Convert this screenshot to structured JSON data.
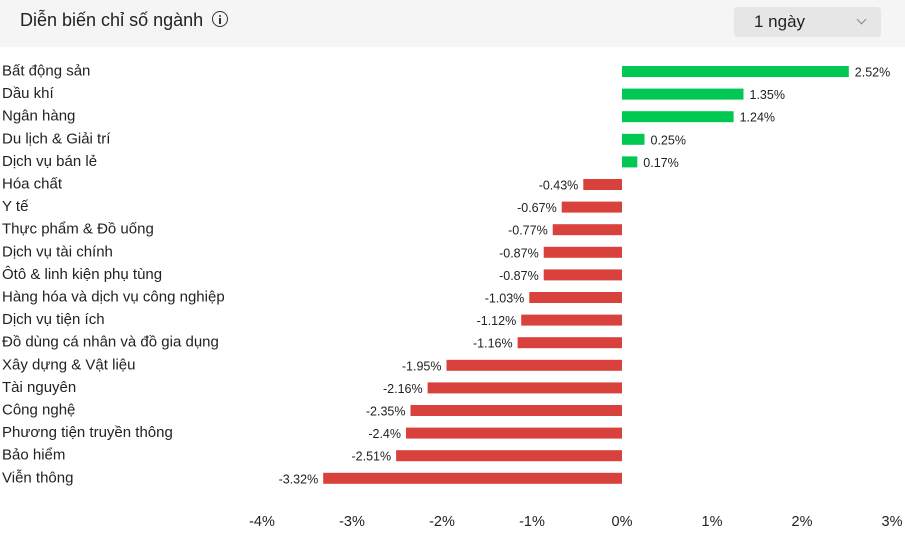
{
  "header": {
    "title": "Diễn biến chỉ số ngành",
    "period": "1 ngày"
  },
  "colors": {
    "positive": "#00c853",
    "negative": "#d9423c"
  },
  "chart_data": {
    "type": "bar",
    "orientation": "horizontal",
    "title": "Diễn biến chỉ số ngành",
    "categories": [
      "Bất động sản",
      "Dầu khí",
      "Ngân hàng",
      "Du lịch & Giải trí",
      "Dịch vụ bán lẻ",
      "Hóa chất",
      "Y tế",
      "Thực phẩm & Đồ uống",
      "Dịch vụ tài chính",
      "Ôtô & linh kiện phụ tùng",
      "Hàng hóa và dịch vụ công nghiệp",
      "Dịch vụ tiện ích",
      "Đồ dùng cá nhân và đồ gia dụng",
      "Xây dựng & Vật liệu",
      "Tài nguyên",
      "Công nghệ",
      "Phương tiện truyền thông",
      "Bảo hiểm",
      "Viễn thông"
    ],
    "values": [
      2.52,
      1.35,
      1.24,
      0.25,
      0.17,
      -0.43,
      -0.67,
      -0.77,
      -0.87,
      -0.87,
      -1.03,
      -1.12,
      -1.16,
      -1.95,
      -2.16,
      -2.35,
      -2.4,
      -2.51,
      -3.32
    ],
    "value_labels": [
      "2.52%",
      "1.35%",
      "1.24%",
      "0.25%",
      "0.17%",
      "-0.43%",
      "-0.67%",
      "-0.77%",
      "-0.87%",
      "-0.87%",
      "-1.03%",
      "-1.12%",
      "-1.16%",
      "-1.95%",
      "-2.16%",
      "-2.35%",
      "-2.4%",
      "-2.51%",
      "-3.32%"
    ],
    "xlim": [
      -4,
      3
    ],
    "xticks": [
      -4,
      -3,
      -2,
      -1,
      0,
      1,
      2,
      3
    ],
    "xtick_labels": [
      "-4%",
      "-3%",
      "-2%",
      "-1%",
      "0%",
      "1%",
      "2%",
      "3%"
    ],
    "grid": false,
    "legend": false
  }
}
